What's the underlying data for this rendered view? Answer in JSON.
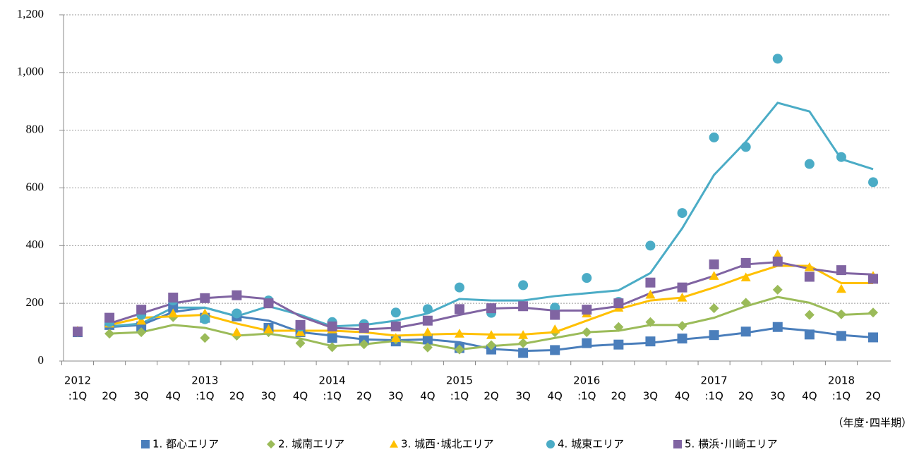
{
  "chart_data": {
    "type": "line-scatter",
    "x_label": "（年度･四半期）",
    "categories": [
      [
        "2012",
        ":1Q"
      ],
      [
        "2Q"
      ],
      [
        "3Q"
      ],
      [
        "4Q"
      ],
      [
        "2013",
        ":1Q"
      ],
      [
        "2Q"
      ],
      [
        "3Q"
      ],
      [
        "4Q"
      ],
      [
        "2014",
        ":1Q"
      ],
      [
        "2Q"
      ],
      [
        "3Q"
      ],
      [
        "4Q"
      ],
      [
        "2015",
        ":1Q"
      ],
      [
        "2Q"
      ],
      [
        "3Q"
      ],
      [
        "4Q"
      ],
      [
        "2016",
        ":1Q"
      ],
      [
        "2Q"
      ],
      [
        "3Q"
      ],
      [
        "4Q"
      ],
      [
        "2017",
        ":1Q"
      ],
      [
        "2Q"
      ],
      [
        "3Q"
      ],
      [
        "4Q"
      ],
      [
        "2018",
        ":1Q"
      ],
      [
        "2Q"
      ]
    ],
    "ylim": [
      0,
      1200
    ],
    "yticks": [
      0,
      200,
      400,
      600,
      800,
      {
        "value": 1000,
        "label": "1,000"
      },
      {
        "value": 1200,
        "label": "1,200"
      }
    ],
    "grid": true,
    "legend": "bottom",
    "series": [
      {
        "name": "1. 都心エリア",
        "color": "#4a7ebb",
        "marker": "square",
        "values": [
          100,
          125,
          120,
          185,
          150,
          155,
          115,
          100,
          80,
          72,
          68,
          75,
          45,
          40,
          28,
          38,
          62,
          57,
          68,
          78,
          90,
          102,
          118,
          92,
          87,
          82
        ],
        "trend_values": [
          null,
          118,
          125,
          170,
          185,
          155,
          140,
          100,
          88,
          75,
          72,
          75,
          65,
          42,
          35,
          38,
          52,
          58,
          63,
          75,
          85,
          98,
          115,
          105,
          90,
          82
        ]
      },
      {
        "name": "2. 城南エリア",
        "color": "#9bbb59",
        "marker": "diamond",
        "values": [
          100,
          95,
          100,
          152,
          80,
          88,
          100,
          62,
          48,
          58,
          75,
          47,
          40,
          55,
          62,
          100,
          100,
          118,
          135,
          122,
          183,
          202,
          247,
          160,
          162,
          168
        ],
        "trend_values": [
          null,
          95,
          100,
          125,
          115,
          88,
          95,
          78,
          52,
          58,
          70,
          60,
          40,
          52,
          60,
          80,
          100,
          105,
          125,
          125,
          150,
          190,
          222,
          202,
          160,
          165
        ]
      },
      {
        "name": "3. 城西･城北エリア",
        "color": "#ffc000",
        "marker": "triangle",
        "values": [
          105,
          130,
          140,
          165,
          165,
          100,
          110,
          100,
          110,
          110,
          80,
          100,
          95,
          90,
          90,
          110,
          165,
          185,
          230,
          220,
          295,
          290,
          370,
          325,
          250,
          295
        ],
        "trend_values": [
          null,
          125,
          150,
          155,
          160,
          130,
          105,
          105,
          105,
          100,
          88,
          92,
          95,
          92,
          92,
          100,
          140,
          180,
          210,
          220,
          255,
          295,
          330,
          330,
          270,
          270
        ]
      },
      {
        "name": "4. 城東エリア",
        "color": "#4bacc6",
        "marker": "circle",
        "values": [
          null,
          135,
          160,
          210,
          145,
          165,
          210,
          120,
          135,
          128,
          168,
          180,
          255,
          167,
          263,
          185,
          288,
          205,
          400,
          513,
          775,
          742,
          1048,
          683,
          707,
          620
        ],
        "trend_values": [
          null,
          120,
          130,
          185,
          185,
          155,
          190,
          160,
          120,
          125,
          140,
          165,
          215,
          210,
          210,
          225,
          235,
          245,
          305,
          460,
          645,
          760,
          895,
          865,
          700,
          665
        ]
      },
      {
        "name": "5. 横浜･川崎エリア",
        "color": "#8064a2",
        "marker": "square",
        "values": [
          102,
          150,
          178,
          220,
          218,
          228,
          200,
          125,
          120,
          115,
          120,
          140,
          180,
          183,
          190,
          160,
          178,
          200,
          272,
          255,
          335,
          340,
          345,
          292,
          315,
          285
        ],
        "trend_values": [
          null,
          130,
          165,
          200,
          218,
          225,
          215,
          155,
          115,
          110,
          115,
          135,
          160,
          182,
          185,
          175,
          175,
          190,
          235,
          260,
          295,
          335,
          343,
          320,
          305,
          300
        ]
      }
    ]
  }
}
